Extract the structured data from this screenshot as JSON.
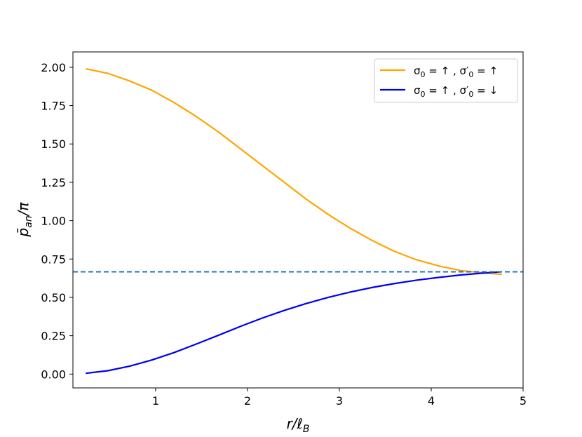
{
  "chart_data": {
    "type": "line",
    "xlabel": "r/ℓB",
    "ylabel": "p̄an/π",
    "xlim": [
      0.1,
      5.0
    ],
    "ylim": [
      -0.09,
      2.1
    ],
    "xticks": [
      1,
      2,
      3,
      4,
      5
    ],
    "xtick_labels": [
      "1",
      "2",
      "3",
      "4",
      "5"
    ],
    "yticks": [
      0.0,
      0.25,
      0.5,
      0.75,
      1.0,
      1.25,
      1.5,
      1.75,
      2.0
    ],
    "ytick_labels": [
      "0.00",
      "0.25",
      "0.50",
      "0.75",
      "1.00",
      "1.25",
      "1.50",
      "1.75",
      "2.00"
    ],
    "grid": false,
    "legend_position": "top-right",
    "series": [
      {
        "name": "σ0 = ↑ , σ′0 = ↑",
        "color": "#ffa500",
        "x": [
          0.24,
          0.48,
          0.72,
          0.96,
          1.2,
          1.44,
          1.68,
          1.92,
          2.16,
          2.4,
          2.64,
          2.88,
          3.12,
          3.36,
          3.6,
          3.84,
          4.08,
          4.32,
          4.56,
          4.77
        ],
        "y": [
          1.99,
          1.96,
          1.91,
          1.85,
          1.77,
          1.68,
          1.58,
          1.47,
          1.36,
          1.25,
          1.14,
          1.04,
          0.95,
          0.87,
          0.8,
          0.745,
          0.705,
          0.675,
          0.66,
          0.65
        ]
      },
      {
        "name": "σ0 = ↑ , σ′0 = ↓",
        "color": "#0000ee",
        "x": [
          0.24,
          0.48,
          0.72,
          0.96,
          1.2,
          1.44,
          1.68,
          1.92,
          2.16,
          2.4,
          2.64,
          2.88,
          3.12,
          3.36,
          3.6,
          3.84,
          4.08,
          4.32,
          4.56,
          4.77
        ],
        "y": [
          0.005,
          0.022,
          0.052,
          0.092,
          0.14,
          0.195,
          0.252,
          0.31,
          0.365,
          0.415,
          0.46,
          0.5,
          0.535,
          0.565,
          0.59,
          0.612,
          0.63,
          0.646,
          0.658,
          0.667
        ]
      }
    ],
    "reference_line": {
      "y": 0.6667,
      "style": "dashed",
      "color": "#1f77b4"
    }
  }
}
